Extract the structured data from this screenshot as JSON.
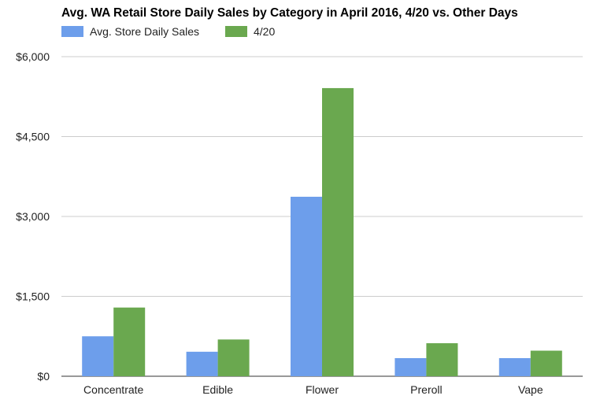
{
  "chart_data": {
    "type": "bar",
    "title": "Avg. WA Retail Store Daily Sales by Category in April 2016, 4/20 vs. Other Days",
    "xlabel": "",
    "ylabel": "",
    "categories": [
      "Concentrate",
      "Edible",
      "Flower",
      "Preroll",
      "Vape"
    ],
    "series": [
      {
        "name": "Avg. Store Daily Sales",
        "color": "#6d9eeb",
        "values": [
          750,
          460,
          3370,
          340,
          340
        ]
      },
      {
        "name": "4/20",
        "color": "#6aa84f",
        "values": [
          1290,
          690,
          5410,
          620,
          480
        ]
      }
    ],
    "ylim": [
      0,
      6000
    ],
    "yticks": [
      0,
      1500,
      3000,
      4500,
      6000
    ],
    "ytick_labels": [
      "$0",
      "$1,500",
      "$3,000",
      "$4,500",
      "$6,000"
    ],
    "grid": true,
    "legend": "top-left"
  }
}
